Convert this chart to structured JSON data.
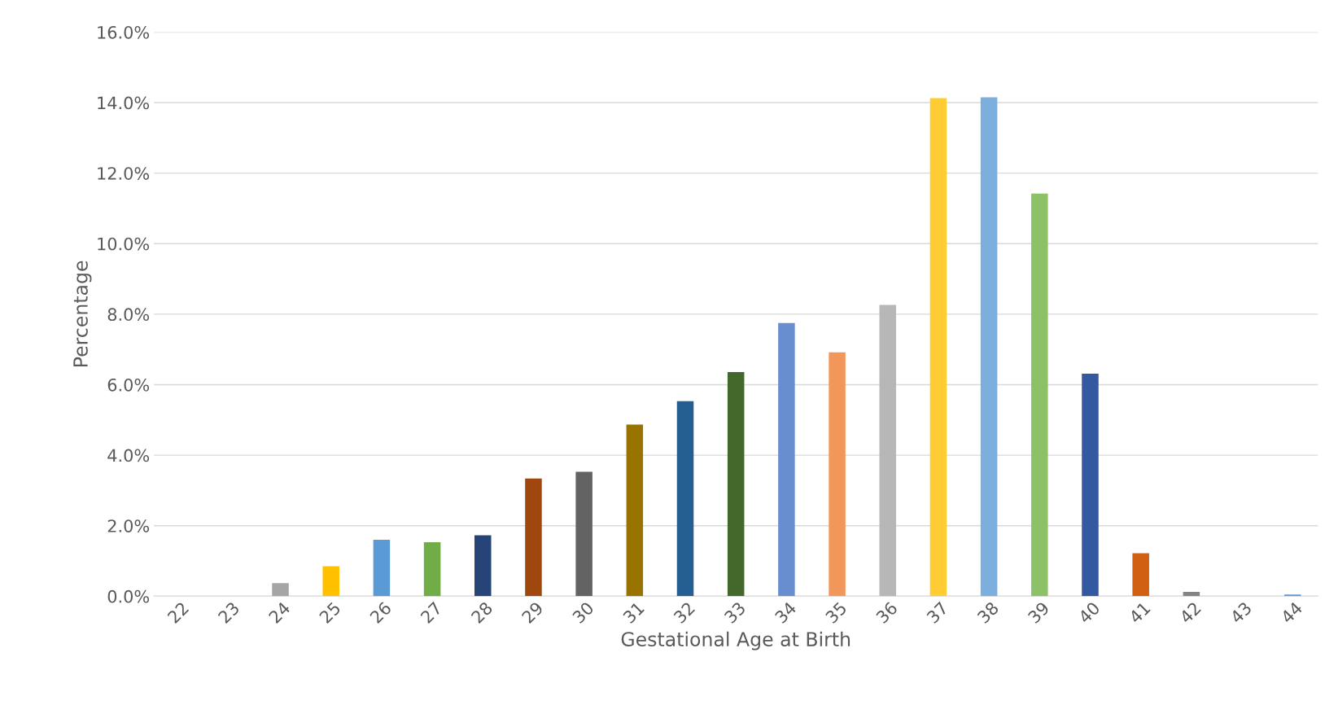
{
  "chart_data": {
    "type": "bar",
    "xlabel": "Gestational Age at Birth",
    "ylabel": "Percentage",
    "categories": [
      "22",
      "23",
      "24",
      "25",
      "26",
      "27",
      "28",
      "29",
      "30",
      "31",
      "32",
      "33",
      "34",
      "35",
      "36",
      "37",
      "38",
      "39",
      "40",
      "41",
      "42",
      "43",
      "44"
    ],
    "values": [
      0.0,
      0.0,
      0.37,
      0.85,
      1.6,
      1.53,
      1.73,
      3.34,
      3.53,
      4.87,
      5.53,
      6.36,
      7.75,
      6.92,
      8.26,
      14.13,
      14.15,
      11.42,
      6.31,
      1.22,
      0.12,
      0.0,
      0.05
    ],
    "colors": [
      "#5b9bd5",
      "#ed7d31",
      "#a5a5a5",
      "#ffc000",
      "#5b9bd5",
      "#70ad47",
      "#264478",
      "#9e480e",
      "#636363",
      "#997300",
      "#255e91",
      "#43682b",
      "#698ed0",
      "#f1975a",
      "#b7b7b7",
      "#ffcd33",
      "#7cafdd",
      "#8cc168",
      "#335aa1",
      "#d26012",
      "#848484",
      "#cc9a00",
      "#5b9bd5"
    ],
    "ylim": [
      0,
      16
    ],
    "yticks": [
      {
        "value": 0,
        "label": "0.0%"
      },
      {
        "value": 2,
        "label": "2.0%"
      },
      {
        "value": 4,
        "label": "4.0%"
      },
      {
        "value": 6,
        "label": "6.0%"
      },
      {
        "value": 8,
        "label": "8.0%"
      },
      {
        "value": 10,
        "label": "10.0%"
      },
      {
        "value": 12,
        "label": "12.0%"
      },
      {
        "value": 14,
        "label": "14.0%"
      },
      {
        "value": 16,
        "label": "16.0%"
      }
    ],
    "grid": "y",
    "legend": false
  }
}
